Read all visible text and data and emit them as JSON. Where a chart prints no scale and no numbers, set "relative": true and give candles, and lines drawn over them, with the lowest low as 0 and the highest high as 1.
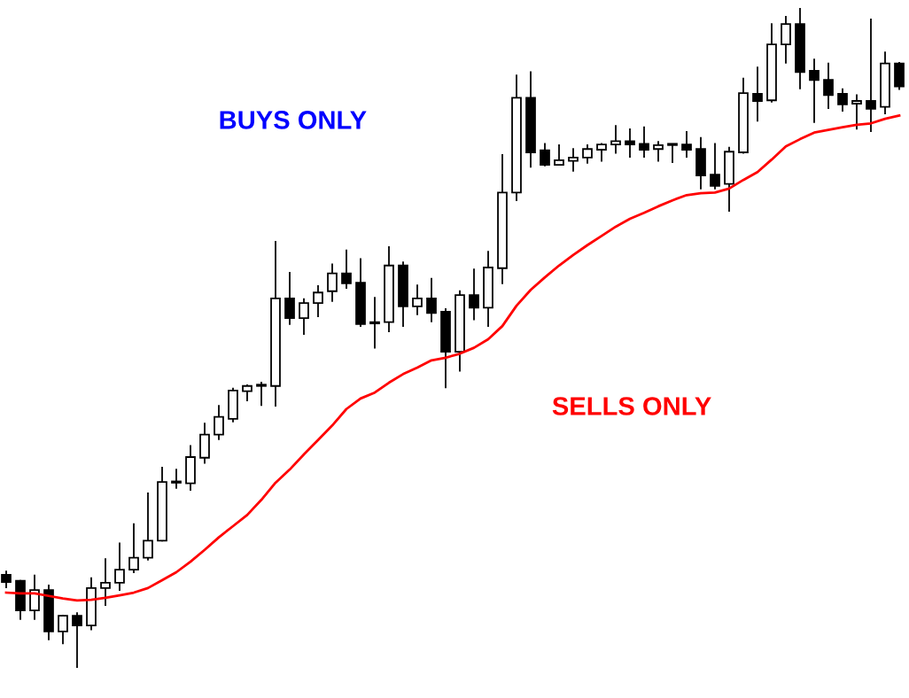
{
  "chart_data": {
    "type": "candlestick",
    "relative": true,
    "annotations": [
      "BUYS ONLY",
      "SELLS ONLY"
    ],
    "categories": [
      null,
      null,
      null,
      null,
      null,
      null,
      null,
      null,
      null,
      null,
      null,
      null,
      null,
      null,
      null,
      null,
      null,
      null,
      null,
      null,
      null,
      null,
      null,
      null,
      null,
      null,
      null,
      null,
      null,
      null,
      null,
      null,
      null,
      null,
      null,
      null,
      null,
      null,
      null,
      null,
      null,
      null,
      null,
      null,
      null,
      null,
      null,
      null,
      null,
      null,
      null,
      null,
      null,
      null,
      null,
      null,
      null,
      null,
      null,
      null,
      null,
      null,
      null,
      null
    ],
    "ohlc": [
      [
        0.14,
        0.145,
        0.121,
        0.129
      ],
      [
        0.131,
        0.131,
        0.073,
        0.086
      ],
      [
        0.086,
        0.139,
        0.073,
        0.117
      ],
      [
        0.117,
        0.124,
        0.042,
        0.054
      ],
      [
        0.054,
        0.078,
        0.036,
        0.078
      ],
      [
        0.078,
        0.082,
        0.0,
        0.063
      ],
      [
        0.063,
        0.135,
        0.057,
        0.12
      ],
      [
        0.12,
        0.164,
        0.094,
        0.128
      ],
      [
        0.128,
        0.188,
        0.117,
        0.148
      ],
      [
        0.148,
        0.217,
        0.144,
        0.166
      ],
      [
        0.166,
        0.264,
        0.163,
        0.192
      ],
      [
        0.192,
        0.303,
        0.192,
        0.281
      ],
      [
        0.28,
        0.3,
        0.272,
        0.28
      ],
      [
        0.279,
        0.336,
        0.269,
        0.319
      ],
      [
        0.318,
        0.37,
        0.31,
        0.353
      ],
      [
        0.353,
        0.397,
        0.346,
        0.38
      ],
      [
        0.377,
        0.423,
        0.373,
        0.42
      ],
      [
        0.419,
        0.428,
        0.405,
        0.427
      ],
      [
        0.427,
        0.432,
        0.398,
        0.427
      ],
      [
        0.427,
        0.646,
        0.397,
        0.56
      ],
      [
        0.56,
        0.599,
        0.521,
        0.53
      ],
      [
        0.53,
        0.559,
        0.506,
        0.553
      ],
      [
        0.553,
        0.579,
        0.533,
        0.569
      ],
      [
        0.571,
        0.612,
        0.556,
        0.598
      ],
      [
        0.598,
        0.633,
        0.576,
        0.583
      ],
      [
        0.584,
        0.62,
        0.518,
        0.521
      ],
      [
        0.522,
        0.561,
        0.485,
        0.522
      ],
      [
        0.524,
        0.638,
        0.51,
        0.61
      ],
      [
        0.61,
        0.615,
        0.518,
        0.548
      ],
      [
        0.548,
        0.58,
        0.536,
        0.56
      ],
      [
        0.56,
        0.59,
        0.525,
        0.538
      ],
      [
        0.54,
        0.544,
        0.425,
        0.479
      ],
      [
        0.479,
        0.571,
        0.45,
        0.565
      ],
      [
        0.565,
        0.604,
        0.528,
        0.546
      ],
      [
        0.546,
        0.631,
        0.518,
        0.607
      ],
      [
        0.606,
        0.778,
        0.583,
        0.721
      ],
      [
        0.721,
        0.899,
        0.709,
        0.865
      ],
      [
        0.865,
        0.904,
        0.76,
        0.782
      ],
      [
        0.785,
        0.795,
        0.762,
        0.763
      ],
      [
        0.763,
        0.793,
        0.763,
        0.77
      ],
      [
        0.769,
        0.787,
        0.754,
        0.774
      ],
      [
        0.774,
        0.793,
        0.766,
        0.787
      ],
      [
        0.786,
        0.795,
        0.769,
        0.794
      ],
      [
        0.794,
        0.822,
        0.781,
        0.799
      ],
      [
        0.799,
        0.817,
        0.775,
        0.794
      ],
      [
        0.795,
        0.82,
        0.775,
        0.786
      ],
      [
        0.787,
        0.798,
        0.769,
        0.793
      ],
      [
        0.794,
        0.794,
        0.767,
        0.793
      ],
      [
        0.794,
        0.813,
        0.775,
        0.786
      ],
      [
        0.787,
        0.804,
        0.727,
        0.747
      ],
      [
        0.748,
        0.795,
        0.727,
        0.731
      ],
      [
        0.734,
        0.789,
        0.693,
        0.783
      ],
      [
        0.782,
        0.894,
        0.781,
        0.872
      ],
      [
        0.871,
        0.911,
        0.83,
        0.86
      ],
      [
        0.861,
        0.977,
        0.859,
        0.946
      ],
      [
        0.946,
        0.988,
        0.918,
        0.977
      ],
      [
        0.977,
        1.0,
        0.879,
        0.904
      ],
      [
        0.906,
        0.923,
        0.828,
        0.892
      ],
      [
        0.892,
        0.917,
        0.849,
        0.869
      ],
      [
        0.871,
        0.878,
        0.845,
        0.855
      ],
      [
        0.856,
        0.869,
        0.818,
        0.86
      ],
      [
        0.86,
        0.984,
        0.814,
        0.848
      ],
      [
        0.851,
        0.934,
        0.841,
        0.917
      ],
      [
        0.917,
        0.918,
        0.878,
        0.882
      ]
    ],
    "series": [
      {
        "type": "line",
        "color": "#ff0000",
        "values": [
          0.113,
          0.112,
          0.112,
          0.108,
          0.104,
          0.101,
          0.102,
          0.105,
          0.109,
          0.113,
          0.12,
          0.132,
          0.144,
          0.16,
          0.178,
          0.197,
          0.214,
          0.231,
          0.254,
          0.28,
          0.3,
          0.323,
          0.345,
          0.367,
          0.392,
          0.408,
          0.417,
          0.432,
          0.445,
          0.455,
          0.466,
          0.47,
          0.476,
          0.485,
          0.498,
          0.518,
          0.549,
          0.573,
          0.592,
          0.61,
          0.626,
          0.641,
          0.655,
          0.669,
          0.681,
          0.69,
          0.7,
          0.709,
          0.717,
          0.72,
          0.721,
          0.727,
          0.74,
          0.752,
          0.771,
          0.791,
          0.802,
          0.812,
          0.816,
          0.82,
          0.824,
          0.826,
          0.833,
          0.838
        ]
      }
    ],
    "grid": false,
    "legend": false
  }
}
